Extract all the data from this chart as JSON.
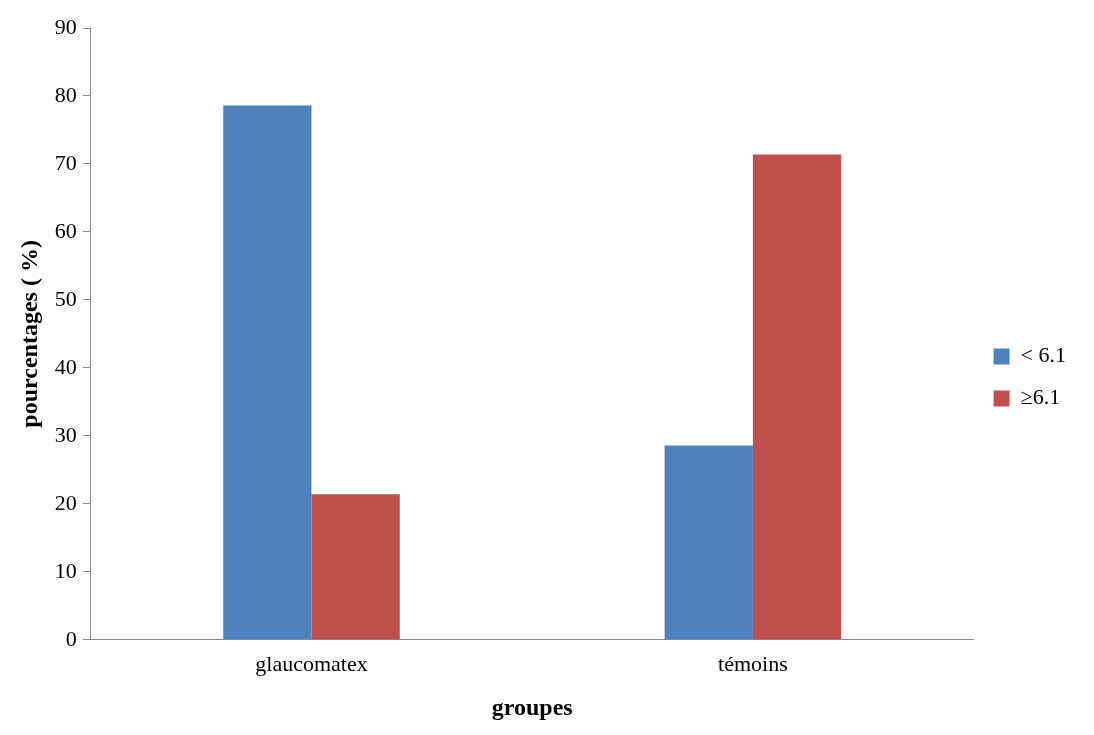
{
  "chart_data": {
    "type": "bar",
    "xlabel": "groupes",
    "ylabel": "pourcentages ( %)",
    "categories": [
      "glaucomatex",
      "témoins"
    ],
    "series": [
      {
        "name": "< 6.1",
        "color": "#4f81bd",
        "values": [
          78.6,
          28.6
        ]
      },
      {
        "name": "≥6.1",
        "color": "#c0504d",
        "values": [
          21.4,
          71.4
        ]
      }
    ],
    "ylim": [
      0,
      90
    ],
    "yticks": [
      0,
      10,
      20,
      30,
      40,
      50,
      60,
      70,
      80,
      90
    ],
    "grid": false,
    "legend": "right"
  }
}
